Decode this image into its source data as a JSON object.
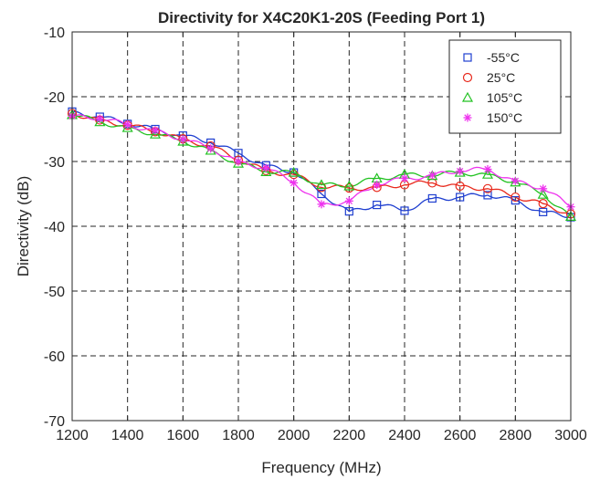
{
  "chart_data": {
    "type": "line",
    "title": "Directivity for X4C20K1-20S (Feeding Port 1)",
    "xlabel": "Frequency (MHz)",
    "ylabel": "Directivity (dB)",
    "xlim": [
      1200,
      3000
    ],
    "ylim": [
      -70,
      -10
    ],
    "xticks": [
      1200,
      1400,
      1600,
      1800,
      2000,
      2200,
      2400,
      2600,
      2800,
      3000
    ],
    "yticks": [
      -70,
      -60,
      -50,
      -40,
      -30,
      -20,
      -10
    ],
    "grid": true,
    "legend_position": "top-right",
    "x": [
      1200,
      1300,
      1400,
      1500,
      1600,
      1700,
      1800,
      1900,
      2000,
      2100,
      2200,
      2300,
      2400,
      2500,
      2600,
      2700,
      2800,
      2900,
      3000
    ],
    "series": [
      {
        "name": "-55°C",
        "color": "#1f3fd0",
        "marker": "square",
        "values": [
          -22.3,
          -23.1,
          -24.2,
          -25.0,
          -26.0,
          -27.1,
          -28.7,
          -30.6,
          -31.7,
          -35.0,
          -37.7,
          -36.7,
          -37.6,
          -35.7,
          -35.5,
          -35.2,
          -36.0,
          -37.8,
          -38.6
        ]
      },
      {
        "name": "25°C",
        "color": "#e8291c",
        "marker": "circle",
        "values": [
          -22.6,
          -23.6,
          -24.4,
          -25.4,
          -26.5,
          -27.6,
          -29.8,
          -31.4,
          -32.0,
          -34.0,
          -34.1,
          -34.0,
          -33.6,
          -33.3,
          -33.8,
          -34.2,
          -35.5,
          -36.5,
          -38.1
        ]
      },
      {
        "name": "105°C",
        "color": "#22c222",
        "marker": "triangle",
        "values": [
          -22.8,
          -23.9,
          -24.8,
          -25.8,
          -26.9,
          -28.3,
          -30.3,
          -31.6,
          -31.7,
          -33.6,
          -33.8,
          -32.6,
          -32.0,
          -32.2,
          -31.7,
          -32.0,
          -33.2,
          -35.1,
          -38.5
        ]
      },
      {
        "name": "150°C",
        "color": "#ee33ee",
        "marker": "asterisk",
        "values": [
          -23.0,
          -23.4,
          -24.3,
          -25.2,
          -26.6,
          -28.0,
          -30.0,
          -31.0,
          -33.3,
          -36.6,
          -36.1,
          -33.6,
          -32.6,
          -32.1,
          -31.5,
          -31.2,
          -33.0,
          -34.2,
          -37.0
        ]
      }
    ]
  }
}
